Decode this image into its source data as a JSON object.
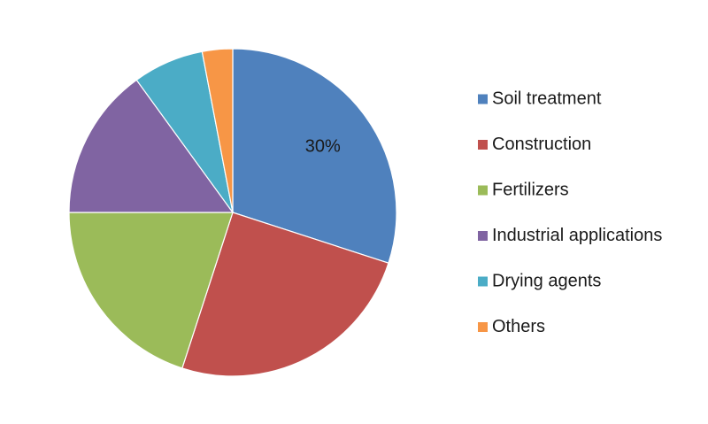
{
  "chart_data": {
    "type": "pie",
    "title": "",
    "start_angle_deg": 0,
    "direction": "clockwise",
    "legend_position": "right",
    "slices": [
      {
        "label": "Soil treatment",
        "value": 30,
        "color": "#4F81BD",
        "data_label": "30%"
      },
      {
        "label": "Construction",
        "value": 25,
        "color": "#C0504D",
        "data_label": ""
      },
      {
        "label": "Fertilizers",
        "value": 20,
        "color": "#9BBB59",
        "data_label": ""
      },
      {
        "label": "Industrial applications",
        "value": 15,
        "color": "#8064A2",
        "data_label": ""
      },
      {
        "label": "Drying agents",
        "value": 7,
        "color": "#4BACC6",
        "data_label": ""
      },
      {
        "label": "Others",
        "value": 3,
        "color": "#F79646",
        "data_label": ""
      }
    ]
  }
}
